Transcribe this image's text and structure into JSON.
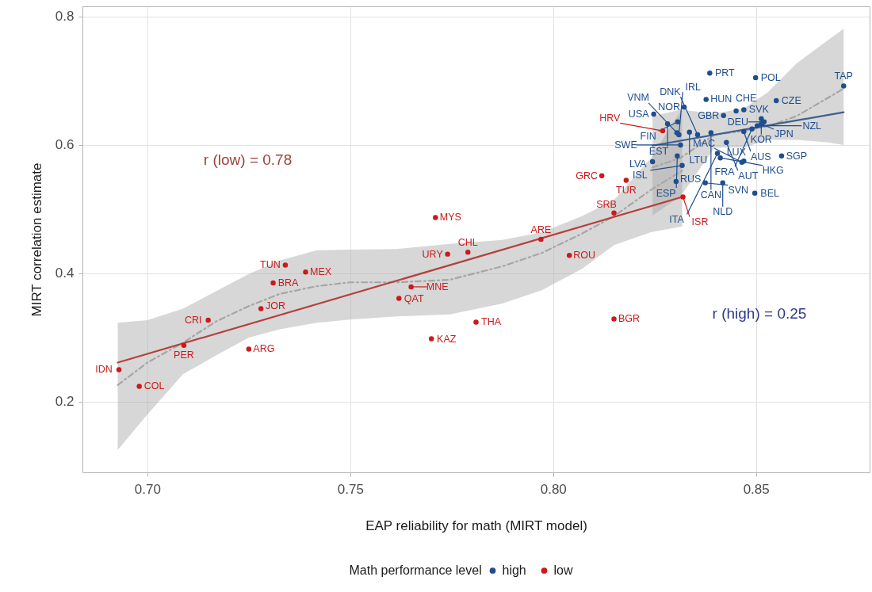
{
  "chart_data": {
    "type": "scatter",
    "xlabel": "EAP reliability for math (MIRT model)",
    "ylabel": "MIRT correlation estimate",
    "legend_title": "Math performance level",
    "xlim": [
      0.684,
      0.878
    ],
    "ylim": [
      0.09,
      0.816
    ],
    "xticks": [
      {
        "value": 0.7,
        "label": "0.70"
      },
      0.75,
      {
        "value": 0.8,
        "label": "0.80"
      },
      0.85
    ],
    "yticks": [
      0.2,
      0.4,
      0.6,
      0.8
    ],
    "grid": true,
    "legend": "bottom",
    "annotations": [
      "r (low) = 0.78",
      "r (high) = 0.25"
    ],
    "series": [
      {
        "name": "high",
        "color": "#1f4e8c",
        "marker": "circle",
        "x": [
          0.8386,
          0.8499,
          0.8716,
          0.8377,
          0.855,
          0.8323,
          0.847,
          0.8451,
          0.8248,
          0.842,
          0.8513,
          0.852,
          0.8307,
          0.8513,
          0.8282,
          0.8503,
          0.849,
          0.847,
          0.8336,
          0.8389,
          0.8305,
          0.831,
          0.8356,
          0.8427,
          0.8314,
          0.8405,
          0.8306,
          0.8563,
          0.8412,
          0.847,
          0.8245,
          0.8318,
          0.8303,
          0.8375,
          0.8418,
          0.8465,
          0.8497
        ],
        "values": [
          0.712,
          0.705,
          0.692,
          0.671,
          0.669,
          0.659,
          0.655,
          0.653,
          0.648,
          0.646,
          0.641,
          0.636,
          0.636,
          0.633,
          0.633,
          0.63,
          0.625,
          0.621,
          0.62,
          0.619,
          0.619,
          0.616,
          0.616,
          0.604,
          0.6,
          0.587,
          0.583,
          0.583,
          0.58,
          0.575,
          0.574,
          0.568,
          0.543,
          0.541,
          0.541,
          0.573,
          0.525
        ],
        "value_labels": [
          "PRT",
          "POL",
          "TAP",
          "HUN",
          "CZE",
          "NOR",
          "SVK",
          "CHE",
          "USA",
          "GBR",
          "KOR",
          "DEU",
          "FIN",
          "JPN",
          "EST",
          "NZL",
          "FRA",
          "AUS",
          "LTU",
          "CAN",
          "VNM",
          "IRL",
          "DNK",
          "AUT",
          "SWE",
          "ITA",
          "ESP",
          "SGP",
          "HKG",
          "LUX",
          "LVA",
          "ISL",
          "RUS",
          "SVN",
          "NLD",
          "MAC",
          "BEL"
        ]
      },
      {
        "name": "low",
        "color": "#cc1a1a",
        "marker": "circle",
        "x": [
          0.693,
          0.698,
          0.709,
          0.715,
          0.725,
          0.728,
          0.731,
          0.734,
          0.739,
          0.762,
          0.765,
          0.77,
          0.771,
          0.774,
          0.779,
          0.781,
          0.797,
          0.804,
          0.815,
          0.815,
          0.812,
          0.818,
          0.827,
          0.832
        ],
        "values": [
          0.25,
          0.224,
          0.288,
          0.327,
          0.282,
          0.345,
          0.385,
          0.413,
          0.402,
          0.361,
          0.379,
          0.298,
          0.487,
          0.43,
          0.433,
          0.324,
          0.453,
          0.428,
          0.494,
          0.329,
          0.552,
          0.545,
          0.622,
          0.519
        ],
        "value_labels": [
          "IDN",
          "COL",
          "PER",
          "CRI",
          "ARG",
          "JOR",
          "BRA",
          "TUN",
          "MEX",
          "QAT",
          "MNE",
          "KAZ",
          "MYS",
          "URY",
          "CHL",
          "THA",
          "ARE",
          "ROU",
          "SRB",
          "BGR",
          "GRC",
          "TUR",
          "HRV",
          "ISR"
        ]
      },
      {
        "type": "line",
        "color": "#a6a6a6",
        "line_style": "dashed",
        "x": [
          0.6927,
          0.7,
          0.7088,
          0.7169,
          0.725,
          0.7326,
          0.7418,
          0.7499,
          0.7614,
          0.7745,
          0.7875,
          0.7973,
          0.8071,
          0.815,
          0.8241,
          0.8318
        ],
        "values": [
          0.226,
          0.261,
          0.292,
          0.325,
          0.349,
          0.368,
          0.38,
          0.386,
          0.386,
          0.39,
          0.411,
          0.432,
          0.462,
          0.489,
          0.53,
          0.56
        ],
        "lower": [
          0.125,
          0.18,
          0.243,
          0.272,
          0.3,
          0.313,
          0.323,
          0.328,
          0.333,
          0.336,
          0.353,
          0.374,
          0.407,
          0.444,
          0.464,
          0.473
        ],
        "upper": [
          0.323,
          0.327,
          0.345,
          0.372,
          0.399,
          0.42,
          0.436,
          0.437,
          0.438,
          0.446,
          0.452,
          0.464,
          0.489,
          0.514,
          0.58,
          0.657
        ]
      },
      {
        "type": "line",
        "color": "#a6a6a6",
        "line_style": "dashed",
        "x": [
          0.8245,
          0.8314,
          0.8398,
          0.847,
          0.8529,
          0.86,
          0.8679,
          0.8716
        ],
        "values": [
          0.565,
          0.58,
          0.616,
          0.622,
          0.629,
          0.645,
          0.674,
          0.688
        ],
        "lower": [
          0.49,
          0.52,
          0.596,
          0.596,
          0.608,
          0.608,
          0.604,
          0.6
        ],
        "upper": [
          0.645,
          0.655,
          0.649,
          0.657,
          0.682,
          0.727,
          0.764,
          0.781
        ]
      },
      {
        "type": "line",
        "color": "#b5403a",
        "x": [
          0.6927,
          0.8318
        ],
        "values": [
          0.261,
          0.519
        ]
      },
      {
        "type": "line",
        "color": "#3d5f90",
        "x": [
          0.8245,
          0.8716
        ],
        "values": [
          0.599,
          0.651
        ]
      }
    ]
  }
}
